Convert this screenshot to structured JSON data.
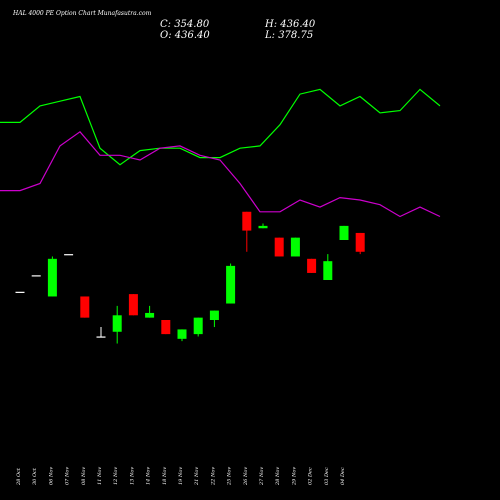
{
  "chart_data": {
    "type": "candlestick",
    "title": "HAL 4000 PE Option Chart Munafasutra.com",
    "ohlc_readout": {
      "close_label": "C: 354.80",
      "high_label": "H: 436.40",
      "open_label": "O: 436.40",
      "low_label": "L: 378.75"
    },
    "x_labels": [
      "28 Oct",
      "30 Oct",
      "06 Nov",
      "07 Nov",
      "08 Nov",
      "11 Nov",
      "12 Nov",
      "13 Nov",
      "14 Nov",
      "18 Nov",
      "19 Nov",
      "21 Nov",
      "22 Nov",
      "25 Nov",
      "26 Nov",
      "27 Nov",
      "28 Nov",
      "29 Nov",
      "02 Dec",
      "03 Dec",
      "04 Dec"
    ],
    "candles": [
      {
        "open": 63,
        "close": 63,
        "high": 63,
        "low": 63,
        "color": "#ffffff"
      },
      {
        "open": 70,
        "close": 70,
        "high": 70,
        "low": 70,
        "color": "#ffffff"
      },
      {
        "open": 61,
        "close": 77,
        "high": 78,
        "low": 61,
        "color": "#00ff00"
      },
      {
        "open": 79,
        "close": 79,
        "high": 79,
        "low": 79,
        "color": "#ffffff"
      },
      {
        "open": 61,
        "close": 52,
        "high": 61,
        "low": 52,
        "color": "#ff0000"
      },
      {
        "open": 44,
        "close": 44,
        "high": 48,
        "low": 44,
        "color": "#ffffff"
      },
      {
        "open": 46,
        "close": 53,
        "high": 57,
        "low": 41,
        "color": "#00ff00"
      },
      {
        "open": 62,
        "close": 53,
        "high": 62,
        "low": 53,
        "color": "#ff0000"
      },
      {
        "open": 52,
        "close": 54,
        "high": 57,
        "low": 52,
        "color": "#00ff00"
      },
      {
        "open": 51,
        "close": 45,
        "high": 51,
        "low": 45,
        "color": "#ff0000"
      },
      {
        "open": 43,
        "close": 47,
        "high": 47,
        "low": 42,
        "color": "#00ff00"
      },
      {
        "open": 45,
        "close": 52,
        "high": 52,
        "low": 44,
        "color": "#00ff00"
      },
      {
        "open": 51,
        "close": 55,
        "high": 55,
        "low": 48,
        "color": "#00ff00"
      },
      {
        "open": 58,
        "close": 74,
        "high": 75,
        "low": 58,
        "color": "#00ff00"
      },
      {
        "open": 97,
        "close": 89,
        "high": 97,
        "low": 80,
        "color": "#ff0000"
      },
      {
        "open": 90,
        "close": 91,
        "high": 92,
        "low": 90,
        "color": "#00ff00"
      },
      {
        "open": 86,
        "close": 78,
        "high": 86,
        "low": 78,
        "color": "#ff0000"
      },
      {
        "open": 78,
        "close": 86,
        "high": 86,
        "low": 78,
        "color": "#00ff00"
      },
      {
        "open": 77,
        "close": 71,
        "high": 77,
        "low": 71,
        "color": "#ff0000"
      },
      {
        "open": 68,
        "close": 76,
        "high": 79,
        "low": 68,
        "color": "#00ff00"
      },
      {
        "open": 91,
        "close": 85,
        "high": 91,
        "low": 85,
        "color": "#00ff00"
      },
      {
        "open": 88,
        "close": 80,
        "high": 88,
        "low": 79,
        "color": "#ff0000"
      }
    ],
    "series": [
      {
        "color": "#00ff00",
        "values": [
          135,
          135,
          142,
          144,
          146,
          124,
          117,
          123,
          124,
          124,
          120,
          120,
          124,
          125,
          134,
          147,
          149,
          142,
          146,
          139,
          140,
          149,
          142
        ]
      },
      {
        "color": "#cc00cc",
        "values": [
          106,
          106,
          109,
          125,
          131,
          121,
          121,
          119,
          124,
          125,
          121,
          119,
          109,
          97,
          97,
          102,
          99,
          103,
          102,
          100,
          95,
          99,
          95
        ]
      }
    ],
    "ylim": [
      0,
      170
    ]
  }
}
